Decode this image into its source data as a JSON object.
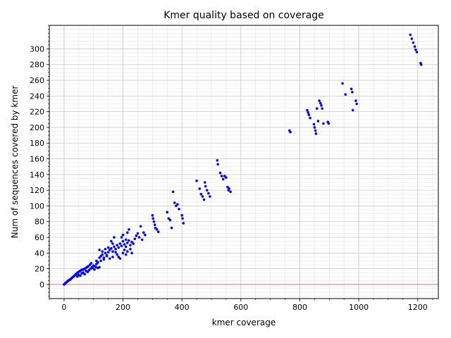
{
  "chart_data": {
    "type": "scatter",
    "title": "Kmer quality based on coverage",
    "xlabel": "kmer coverage",
    "ylabel": "Num of sequences covered by kmer",
    "xlim": [
      -50,
      1270
    ],
    "ylim": [
      -18,
      330
    ],
    "x_major_ticks": [
      0,
      200,
      400,
      600,
      800,
      1000,
      1200
    ],
    "y_major_ticks": [
      0,
      20,
      40,
      60,
      80,
      100,
      120,
      140,
      160,
      180,
      200,
      220,
      240,
      260,
      280,
      300
    ],
    "grid": true,
    "reference_line": {
      "y": 0,
      "color": "#e06060"
    },
    "marker_color": "#0000ff",
    "points": [
      [
        0,
        0
      ],
      [
        3,
        1
      ],
      [
        6,
        2
      ],
      [
        9,
        3
      ],
      [
        12,
        4
      ],
      [
        15,
        5
      ],
      [
        18,
        6
      ],
      [
        20,
        6
      ],
      [
        23,
        7
      ],
      [
        26,
        8
      ],
      [
        29,
        9
      ],
      [
        32,
        10
      ],
      [
        35,
        11
      ],
      [
        38,
        12
      ],
      [
        40,
        13
      ],
      [
        43,
        14
      ],
      [
        46,
        15
      ],
      [
        50,
        16
      ],
      [
        54,
        17
      ],
      [
        58,
        18
      ],
      [
        62,
        19
      ],
      [
        66,
        19
      ],
      [
        70,
        20
      ],
      [
        74,
        21
      ],
      [
        78,
        22
      ],
      [
        82,
        23
      ],
      [
        45,
        10
      ],
      [
        50,
        12
      ],
      [
        55,
        11
      ],
      [
        60,
        14
      ],
      [
        65,
        15
      ],
      [
        70,
        13
      ],
      [
        75,
        17
      ],
      [
        80,
        16
      ],
      [
        85,
        18
      ],
      [
        90,
        20
      ],
      [
        95,
        22
      ],
      [
        100,
        24
      ],
      [
        105,
        23
      ],
      [
        110,
        26
      ],
      [
        88,
        25
      ],
      [
        92,
        27
      ],
      [
        97,
        21
      ],
      [
        103,
        19
      ],
      [
        108,
        22
      ],
      [
        115,
        21
      ],
      [
        120,
        22
      ],
      [
        110,
        30
      ],
      [
        115,
        28
      ],
      [
        120,
        34
      ],
      [
        125,
        36
      ],
      [
        130,
        38
      ],
      [
        135,
        32
      ],
      [
        140,
        40
      ],
      [
        145,
        37
      ],
      [
        150,
        41
      ],
      [
        155,
        44
      ],
      [
        160,
        46
      ],
      [
        165,
        42
      ],
      [
        170,
        48
      ],
      [
        175,
        45
      ],
      [
        180,
        50
      ],
      [
        185,
        47
      ],
      [
        190,
        52
      ],
      [
        195,
        49
      ],
      [
        200,
        55
      ],
      [
        205,
        51
      ],
      [
        210,
        48
      ],
      [
        215,
        53
      ],
      [
        220,
        56
      ],
      [
        225,
        50
      ],
      [
        230,
        54
      ],
      [
        235,
        52
      ],
      [
        240,
        58
      ],
      [
        160,
        55
      ],
      [
        165,
        52
      ],
      [
        170,
        60
      ],
      [
        185,
        35
      ],
      [
        190,
        33
      ],
      [
        180,
        38
      ],
      [
        195,
        60
      ],
      [
        200,
        63
      ],
      [
        210,
        57
      ],
      [
        215,
        66
      ],
      [
        220,
        70
      ],
      [
        200,
        40
      ],
      [
        205,
        44
      ],
      [
        175,
        41
      ],
      [
        165,
        35
      ],
      [
        155,
        33
      ],
      [
        145,
        36
      ],
      [
        135,
        34
      ],
      [
        125,
        30
      ],
      [
        130,
        42
      ],
      [
        140,
        45
      ],
      [
        150,
        47
      ],
      [
        120,
        44
      ],
      [
        210,
        38
      ],
      [
        215,
        42
      ],
      [
        225,
        45
      ],
      [
        230,
        40
      ],
      [
        245,
        62
      ],
      [
        250,
        65
      ],
      [
        255,
        60
      ],
      [
        260,
        74
      ],
      [
        265,
        57
      ],
      [
        270,
        66
      ],
      [
        275,
        63
      ],
      [
        300,
        88
      ],
      [
        302,
        84
      ],
      [
        305,
        80
      ],
      [
        308,
        76
      ],
      [
        310,
        72
      ],
      [
        315,
        70
      ],
      [
        320,
        67
      ],
      [
        350,
        92
      ],
      [
        355,
        84
      ],
      [
        360,
        82
      ],
      [
        365,
        72
      ],
      [
        370,
        118
      ],
      [
        375,
        104
      ],
      [
        380,
        100
      ],
      [
        385,
        102
      ],
      [
        390,
        96
      ],
      [
        400,
        88
      ],
      [
        402,
        84
      ],
      [
        405,
        78
      ],
      [
        450,
        132
      ],
      [
        460,
        122
      ],
      [
        465,
        115
      ],
      [
        470,
        112
      ],
      [
        475,
        108
      ],
      [
        478,
        130
      ],
      [
        480,
        125
      ],
      [
        485,
        120
      ],
      [
        490,
        116
      ],
      [
        495,
        112
      ],
      [
        520,
        158
      ],
      [
        522,
        153
      ],
      [
        530,
        142
      ],
      [
        535,
        138
      ],
      [
        540,
        134
      ],
      [
        545,
        138
      ],
      [
        550,
        136
      ],
      [
        555,
        124
      ],
      [
        558,
        120
      ],
      [
        560,
        122
      ],
      [
        565,
        118
      ],
      [
        765,
        196
      ],
      [
        768,
        194
      ],
      [
        825,
        222
      ],
      [
        828,
        219
      ],
      [
        831,
        216
      ],
      [
        835,
        212
      ],
      [
        848,
        204
      ],
      [
        850,
        200
      ],
      [
        853,
        196
      ],
      [
        855,
        192
      ],
      [
        858,
        224
      ],
      [
        862,
        208
      ],
      [
        866,
        234
      ],
      [
        870,
        231
      ],
      [
        873,
        228
      ],
      [
        876,
        224
      ],
      [
        880,
        205
      ],
      [
        895,
        207
      ],
      [
        898,
        205
      ],
      [
        945,
        256
      ],
      [
        955,
        242
      ],
      [
        975,
        249
      ],
      [
        978,
        245
      ],
      [
        980,
        222
      ],
      [
        990,
        234
      ],
      [
        993,
        230
      ],
      [
        1175,
        318
      ],
      [
        1180,
        313
      ],
      [
        1185,
        308
      ],
      [
        1190,
        303
      ],
      [
        1193,
        299
      ],
      [
        1197,
        296
      ],
      [
        1210,
        282
      ],
      [
        1212,
        280
      ]
    ]
  }
}
